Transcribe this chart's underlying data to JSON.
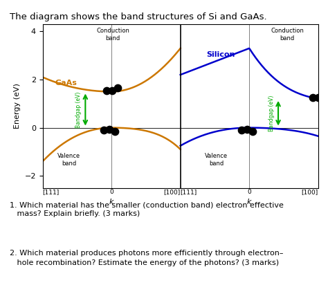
{
  "title": "The diagram shows the band structures of Si and GaAs.",
  "title_fontsize": 9.5,
  "ylabel": "Energy (eV)",
  "ylim": [
    -2.5,
    4.3
  ],
  "yticks": [
    -2,
    0,
    2,
    4
  ],
  "gaas_color": "#CC7700",
  "silicon_color": "#0000CC",
  "bandgap_arrow_color": "#00AA00",
  "dot_color": "#000000",
  "q1": "1. Which material has the smaller (conduction band) electron effective\n   mass? Explain briefly. (3 marks)",
  "q2": "2. Which material produces photons more efficiently through electron–\n   hole recombination? Estimate the energy of the photons? (3 marks)"
}
